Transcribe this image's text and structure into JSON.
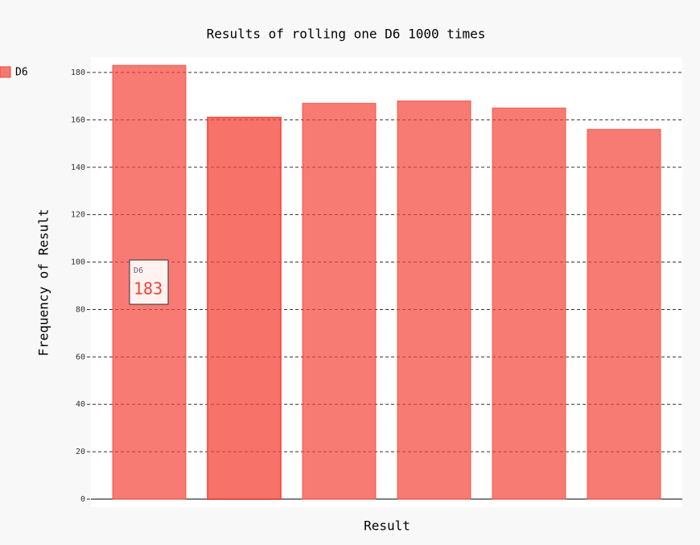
{
  "chart_data": {
    "type": "bar",
    "title": "Results of rolling one D6 1000 times",
    "x_label": "Result",
    "y_label": "Frequency of Result",
    "categories": [
      null,
      null,
      null,
      null,
      null,
      null
    ],
    "series": [
      {
        "name": "D6",
        "color": "#f44336",
        "values": [
          183,
          161,
          167,
          168,
          165,
          156
        ]
      }
    ],
    "ylim": [
      0,
      180
    ],
    "yticks": [
      0,
      20,
      40,
      60,
      80,
      100,
      120,
      140,
      160,
      180
    ],
    "grid": true,
    "legend": "top-left"
  }
}
